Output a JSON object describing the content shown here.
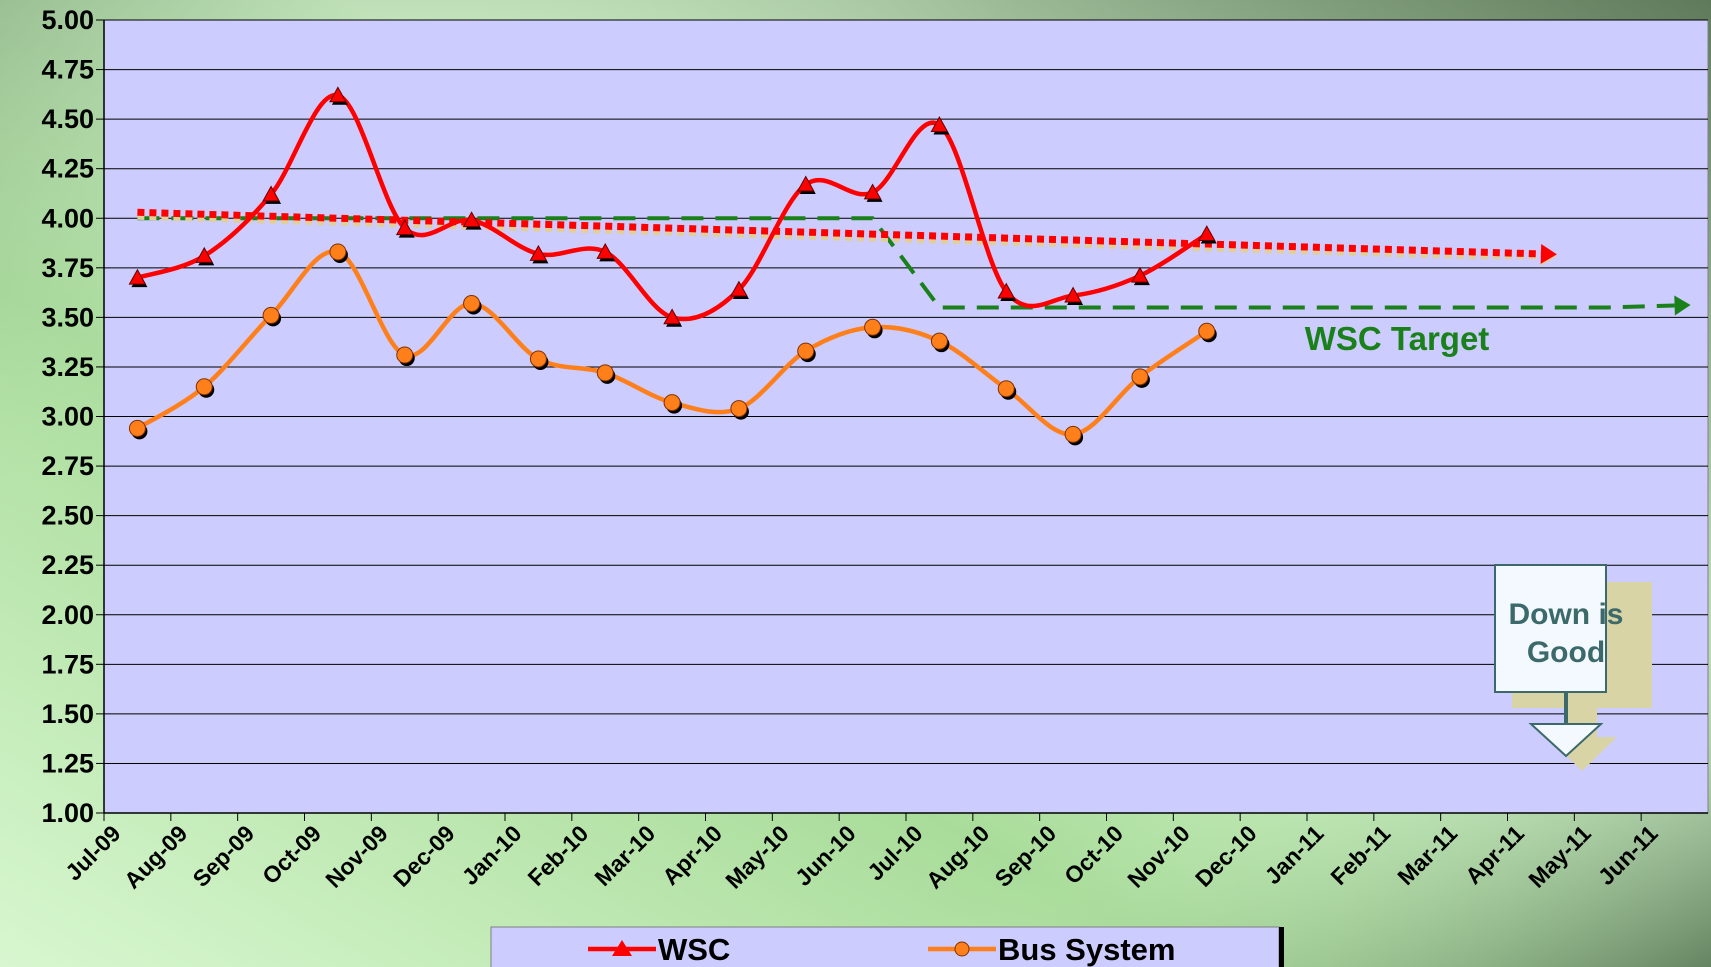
{
  "chart_data": {
    "type": "line",
    "categories": [
      "Jul-09",
      "Aug-09",
      "Sep-09",
      "Oct-09",
      "Nov-09",
      "Dec-09",
      "Jan-10",
      "Feb-10",
      "Mar-10",
      "Apr-10",
      "May-10",
      "Jun-10",
      "Jul-10",
      "Aug-10",
      "Sep-10",
      "Oct-10",
      "Nov-10",
      "Dec-10",
      "Jan-11",
      "Feb-11",
      "Mar-11",
      "Apr-11",
      "May-11",
      "Jun-11"
    ],
    "series": [
      {
        "name": "WSC",
        "color": "#ff0000",
        "marker": "triangle",
        "values": [
          3.7,
          3.81,
          4.12,
          4.62,
          3.95,
          3.99,
          3.82,
          3.83,
          3.5,
          3.64,
          4.17,
          4.13,
          4.47,
          3.63,
          3.61,
          3.71,
          3.92,
          null,
          null,
          null,
          null,
          null,
          null,
          null
        ]
      },
      {
        "name": "Bus System",
        "color": "#ff7f1a",
        "marker": "circle",
        "values": [
          2.94,
          3.15,
          3.51,
          3.83,
          3.31,
          3.57,
          3.29,
          3.22,
          3.07,
          3.04,
          3.33,
          3.45,
          3.38,
          3.14,
          2.91,
          3.2,
          3.43,
          null,
          null,
          null,
          null,
          null,
          null,
          null
        ]
      }
    ],
    "reference_lines": [
      {
        "name": "WSC Target",
        "color": "#1a801a",
        "style": "dashed",
        "values": [
          4.0,
          4.0,
          4.0,
          4.0,
          4.0,
          4.0,
          4.0,
          4.0,
          4.0,
          4.0,
          4.0,
          4.0,
          3.55,
          3.55,
          3.55,
          3.55,
          3.55,
          3.55,
          3.55,
          3.55,
          3.55,
          3.55,
          3.55,
          3.56
        ]
      },
      {
        "color": "#e0cf9a",
        "style": "dotted",
        "values": [
          4.01,
          4.0,
          3.99,
          3.98,
          3.97,
          3.96,
          3.95,
          3.94,
          3.93,
          3.92,
          3.91,
          3.9,
          3.89,
          3.88,
          3.87,
          3.86,
          3.85,
          3.84,
          3.83,
          3.82,
          3.81,
          3.81,
          null,
          null
        ]
      },
      {
        "color": "#ff0000",
        "style": "dotted",
        "values": [
          4.03,
          4.02,
          4.01,
          4.0,
          3.99,
          3.98,
          3.97,
          3.96,
          3.95,
          3.94,
          3.93,
          3.92,
          3.91,
          3.9,
          3.89,
          3.88,
          3.87,
          3.86,
          3.85,
          3.84,
          3.83,
          3.82,
          null,
          null
        ]
      }
    ],
    "annotation": [
      "Down is",
      "Good"
    ],
    "ylim": [
      1,
      5
    ],
    "yticks": [
      {
        "value": 1,
        "label": "1.00"
      },
      {
        "value": 1.25,
        "label": "1.25"
      },
      {
        "value": 1.5,
        "label": "1.50"
      },
      {
        "value": 1.75,
        "label": "1.75"
      },
      {
        "value": 2,
        "label": "2.00"
      },
      {
        "value": 2.25,
        "label": "2.25"
      },
      {
        "value": 2.5,
        "label": "2.50"
      },
      {
        "value": 2.75,
        "label": "2.75"
      },
      {
        "value": 3,
        "label": "3.00"
      },
      {
        "value": 3.25,
        "label": "3.25"
      },
      {
        "value": 3.5,
        "label": "3.50"
      },
      {
        "value": 3.75,
        "label": "3.75"
      },
      {
        "value": 4,
        "label": "4.00"
      },
      {
        "value": 4.25,
        "label": "4.25"
      },
      {
        "value": 4.5,
        "label": "4.50"
      },
      {
        "value": 4.75,
        "label": "4.75"
      },
      {
        "value": 5,
        "label": "5.00"
      }
    ],
    "grid": true,
    "legend": "bottom"
  }
}
